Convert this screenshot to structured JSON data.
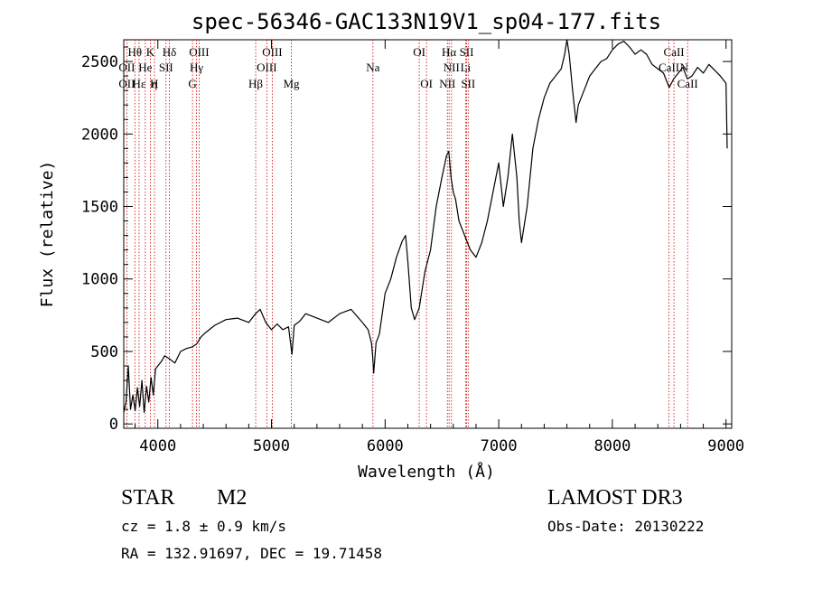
{
  "chart_data": {
    "type": "line",
    "title": "spec-56346-GAC133N19V1_sp04-177.fits",
    "xlabel": "Wavelength (Å)",
    "ylabel": "Flux (relative)",
    "xlim": [
      3700,
      9050
    ],
    "ylim": [
      -30,
      2650
    ],
    "xticks": [
      4000,
      5000,
      6000,
      7000,
      8000,
      9000
    ],
    "yticks": [
      0,
      500,
      1000,
      1500,
      2000,
      2500
    ],
    "series": [
      {
        "name": "spectrum",
        "x": [
          3700,
          3720,
          3740,
          3760,
          3780,
          3800,
          3820,
          3840,
          3860,
          3880,
          3900,
          3920,
          3940,
          3960,
          3980,
          4000,
          4030,
          4060,
          4100,
          4150,
          4200,
          4250,
          4300,
          4340,
          4380,
          4420,
          4500,
          4600,
          4700,
          4800,
          4860,
          4900,
          4950,
          5000,
          5050,
          5100,
          5150,
          5180,
          5200,
          5250,
          5300,
          5400,
          5500,
          5600,
          5700,
          5800,
          5850,
          5880,
          5890,
          5900,
          5920,
          5950,
          6000,
          6050,
          6100,
          6150,
          6180,
          6200,
          6230,
          6260,
          6300,
          6350,
          6400,
          6450,
          6500,
          6540,
          6560,
          6580,
          6600,
          6620,
          6650,
          6700,
          6750,
          6800,
          6850,
          6900,
          6950,
          7000,
          7040,
          7080,
          7120,
          7160,
          7180,
          7200,
          7250,
          7300,
          7350,
          7400,
          7450,
          7500,
          7550,
          7580,
          7600,
          7620,
          7650,
          7680,
          7700,
          7750,
          7800,
          7850,
          7900,
          7950,
          8000,
          8050,
          8100,
          8150,
          8200,
          8250,
          8300,
          8350,
          8400,
          8450,
          8500,
          8540,
          8580,
          8620,
          8660,
          8700,
          8750,
          8800,
          8850,
          8900,
          8950,
          9000,
          9010
        ],
        "values": [
          80,
          150,
          400,
          100,
          200,
          90,
          250,
          120,
          300,
          80,
          260,
          150,
          320,
          200,
          380,
          400,
          430,
          470,
          450,
          420,
          500,
          520,
          530,
          550,
          600,
          630,
          680,
          720,
          730,
          700,
          760,
          790,
          700,
          650,
          690,
          650,
          670,
          480,
          680,
          710,
          760,
          730,
          700,
          760,
          790,
          700,
          650,
          560,
          470,
          350,
          560,
          620,
          900,
          1000,
          1150,
          1260,
          1300,
          1120,
          800,
          720,
          800,
          1050,
          1200,
          1500,
          1700,
          1850,
          1880,
          1700,
          1600,
          1550,
          1400,
          1300,
          1200,
          1150,
          1250,
          1400,
          1600,
          1800,
          1500,
          1700,
          2000,
          1700,
          1400,
          1250,
          1500,
          1900,
          2100,
          2250,
          2350,
          2400,
          2450,
          2550,
          2650,
          2550,
          2300,
          2080,
          2200,
          2300,
          2400,
          2450,
          2500,
          2520,
          2580,
          2620,
          2640,
          2600,
          2550,
          2580,
          2550,
          2480,
          2450,
          2420,
          2320,
          2380,
          2420,
          2460,
          2380,
          2400,
          2460,
          2420,
          2480,
          2440,
          2400,
          2350,
          1900
        ]
      }
    ],
    "lines_top": [
      {
        "label": "Hθ",
        "wavelength": 3798,
        "row": 1
      },
      {
        "label": "K",
        "wavelength": 3934,
        "row": 1
      },
      {
        "label": "Hδ",
        "wavelength": 4102,
        "row": 1
      },
      {
        "label": "OIII",
        "wavelength": 4363,
        "row": 1
      },
      {
        "label": "OIII",
        "wavelength": 5007,
        "row": 1
      },
      {
        "label": "OI",
        "wavelength": 6300,
        "row": 1
      },
      {
        "label": "Hα",
        "wavelength": 6563,
        "row": 1
      },
      {
        "label": "SII",
        "wavelength": 6717,
        "row": 1
      },
      {
        "label": "CaII",
        "wavelength": 8542,
        "row": 1
      },
      {
        "label": "OII",
        "wavelength": 3727,
        "row": 2
      },
      {
        "label": "He",
        "wavelength": 3889,
        "row": 2
      },
      {
        "label": "SII",
        "wavelength": 4072,
        "row": 2
      },
      {
        "label": "Hγ",
        "wavelength": 4340,
        "row": 2
      },
      {
        "label": "OIII",
        "wavelength": 4959,
        "row": 2
      },
      {
        "label": "Na",
        "wavelength": 5893,
        "row": 2
      },
      {
        "label": "NII",
        "wavelength": 6584,
        "row": 2
      },
      {
        "label": "Li",
        "wavelength": 6708,
        "row": 2
      },
      {
        "label": "CaII",
        "wavelength": 8498,
        "row": 2
      },
      {
        "label": "N",
        "wavelength": 8630,
        "row": 2
      }
    ],
    "lines_bottom": [
      {
        "label": "OII",
        "wavelength": 3727
      },
      {
        "label": "Hε",
        "wavelength": 3835
      },
      {
        "label": "η",
        "wavelength": 3970
      },
      {
        "label": "H",
        "wavelength": 3968
      },
      {
        "label": "G",
        "wavelength": 4305
      },
      {
        "label": "Hβ",
        "wavelength": 4861
      },
      {
        "label": "Mg",
        "wavelength": 5175
      },
      {
        "label": "OI",
        "wavelength": 6364
      },
      {
        "label": "NII",
        "wavelength": 6548
      },
      {
        "label": "SII",
        "wavelength": 6731
      },
      {
        "label": "CaII",
        "wavelength": 8662
      }
    ],
    "marker_lines": [
      3727,
      3798,
      3835,
      3889,
      3934,
      3970,
      4072,
      4102,
      4305,
      4340,
      4363,
      4861,
      4959,
      5007,
      5175,
      5893,
      6300,
      6364,
      6548,
      6563,
      6584,
      6708,
      6717,
      6731,
      8498,
      8542,
      8662
    ]
  },
  "info": {
    "object_class": "STAR",
    "subclass": "M2",
    "survey": "LAMOST DR3",
    "redshift": "cz = 1.8 ± 0.9 km/s",
    "obs_date": "Obs-Date: 20130222",
    "coords": "RA = 132.91697, DEC =  19.71458"
  },
  "colors": {
    "line": "#000000",
    "marker": "#cc0000",
    "background": "#ffffff"
  }
}
